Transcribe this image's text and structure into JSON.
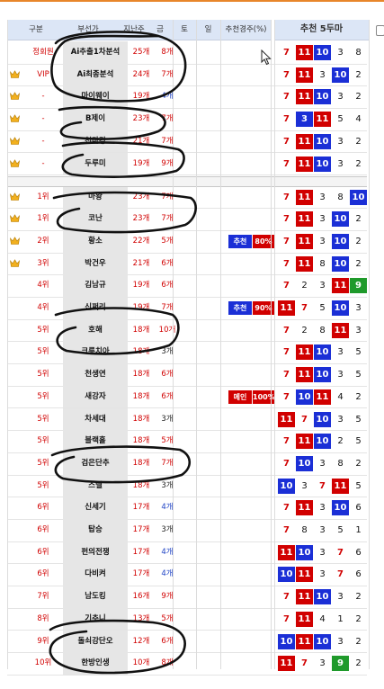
{
  "headers": {
    "rank": "구분",
    "name": "부선가",
    "rate": "지난주",
    "count": "금",
    "sat": "토",
    "sun": "일",
    "recommend_rate": "추천경주(%)",
    "picks": "추천 5두마"
  },
  "colors": {
    "red": "#d10000",
    "blue": "#1b2fd6",
    "green": "#1f9a2b",
    "header_bg": "#dce6f6"
  },
  "group1": [
    {
      "crown": false,
      "rank": "정회원",
      "name": "Ai추출1차분석",
      "rate": "25개",
      "count": "8개",
      "cc": "r",
      "nums": [
        "7",
        "11",
        "10",
        "3",
        "8"
      ],
      "styles": [
        "p",
        "r",
        "u",
        "k",
        "k"
      ]
    },
    {
      "crown": true,
      "rank": "VIP",
      "name": "Ai최종분석",
      "rate": "24개",
      "count": "7개",
      "cc": "r",
      "nums": [
        "7",
        "11",
        "3",
        "10",
        "2"
      ],
      "styles": [
        "p",
        "r",
        "k",
        "u",
        "k"
      ]
    },
    {
      "crown": true,
      "rank": "-",
      "name": "마이웨이",
      "rate": "19개",
      "count": "4개",
      "cc": "b",
      "nums": [
        "7",
        "11",
        "10",
        "3",
        "2"
      ],
      "styles": [
        "p",
        "r",
        "u",
        "k",
        "k"
      ]
    },
    {
      "crown": true,
      "rank": "-",
      "name": "B제이",
      "rate": "23개",
      "count": "7개",
      "cc": "r",
      "nums": [
        "7",
        "3",
        "11",
        "5",
        "4"
      ],
      "styles": [
        "p",
        "u",
        "r",
        "k",
        "k"
      ]
    },
    {
      "crown": true,
      "rank": "-",
      "name": "천마킹",
      "rate": "21개",
      "count": "7개",
      "cc": "r",
      "nums": [
        "7",
        "11",
        "10",
        "3",
        "2"
      ],
      "styles": [
        "p",
        "r",
        "u",
        "k",
        "k"
      ]
    },
    {
      "crown": true,
      "rank": "-",
      "name": "두루미",
      "rate": "19개",
      "count": "9개",
      "cc": "r",
      "nums": [
        "7",
        "11",
        "10",
        "3",
        "2"
      ],
      "styles": [
        "p",
        "r",
        "u",
        "k",
        "k"
      ]
    }
  ],
  "group2": [
    {
      "crown": true,
      "rank": "1위",
      "name": "마왕",
      "rate": "23개",
      "count": "7개",
      "cc": "r",
      "nums": [
        "7",
        "11",
        "3",
        "8",
        "10"
      ],
      "styles": [
        "p",
        "r",
        "k",
        "k",
        "u"
      ]
    },
    {
      "crown": true,
      "rank": "1위",
      "name": "코난",
      "rate": "23개",
      "count": "7개",
      "cc": "r",
      "nums": [
        "7",
        "11",
        "3",
        "10",
        "2"
      ],
      "styles": [
        "p",
        "r",
        "k",
        "u",
        "k"
      ]
    },
    {
      "crown": true,
      "rank": "2위",
      "name": "황소",
      "rate": "22개",
      "count": "5개",
      "cc": "r",
      "tag": "추천",
      "tagc": "u",
      "pct": "80%",
      "nums": [
        "7",
        "11",
        "3",
        "10",
        "2"
      ],
      "styles": [
        "p",
        "r",
        "k",
        "u",
        "k"
      ]
    },
    {
      "crown": true,
      "rank": "3위",
      "name": "박건우",
      "rate": "21개",
      "count": "6개",
      "cc": "r",
      "nums": [
        "7",
        "11",
        "8",
        "10",
        "2"
      ],
      "styles": [
        "p",
        "r",
        "k",
        "u",
        "k"
      ]
    },
    {
      "crown": false,
      "rank": "4위",
      "name": "김남규",
      "rate": "19개",
      "count": "6개",
      "cc": "r",
      "nums": [
        "7",
        "2",
        "3",
        "11",
        "9"
      ],
      "styles": [
        "p",
        "k",
        "k",
        "r",
        "g"
      ]
    },
    {
      "crown": false,
      "rank": "4위",
      "name": "신쩌리",
      "rate": "19개",
      "count": "7개",
      "cc": "r",
      "tag": "추천",
      "tagc": "u",
      "pct": "90%",
      "nums": [
        "11",
        "7",
        "5",
        "10",
        "3"
      ],
      "styles": [
        "r",
        "p",
        "k",
        "u",
        "k"
      ]
    },
    {
      "crown": false,
      "rank": "5위",
      "name": "호해",
      "rate": "18개",
      "count": "10개",
      "cc": "r",
      "nums": [
        "7",
        "2",
        "8",
        "11",
        "3"
      ],
      "styles": [
        "p",
        "k",
        "k",
        "r",
        "k"
      ]
    },
    {
      "crown": false,
      "rank": "5위",
      "name": "크릉치아",
      "rate": "18개",
      "count": "3개",
      "cc": "k",
      "nums": [
        "7",
        "11",
        "10",
        "3",
        "5"
      ],
      "styles": [
        "p",
        "r",
        "u",
        "k",
        "k"
      ]
    },
    {
      "crown": false,
      "rank": "5위",
      "name": "천생연",
      "rate": "18개",
      "count": "6개",
      "cc": "r",
      "nums": [
        "7",
        "11",
        "10",
        "3",
        "5"
      ],
      "styles": [
        "p",
        "r",
        "u",
        "k",
        "k"
      ]
    },
    {
      "crown": false,
      "rank": "5위",
      "name": "새강자",
      "rate": "18개",
      "count": "6개",
      "cc": "r",
      "tag": "메인",
      "tagc": "r",
      "pct": "100%",
      "nums": [
        "7",
        "10",
        "11",
        "4",
        "2"
      ],
      "styles": [
        "p",
        "u",
        "r",
        "k",
        "k"
      ]
    },
    {
      "crown": false,
      "rank": "5위",
      "name": "차세대",
      "rate": "18개",
      "count": "3개",
      "cc": "k",
      "nums": [
        "11",
        "7",
        "10",
        "3",
        "5"
      ],
      "styles": [
        "r",
        "p",
        "u",
        "k",
        "k"
      ]
    },
    {
      "crown": false,
      "rank": "5위",
      "name": "블랙홀",
      "rate": "18개",
      "count": "5개",
      "cc": "r",
      "nums": [
        "7",
        "11",
        "10",
        "2",
        "5"
      ],
      "styles": [
        "p",
        "r",
        "u",
        "k",
        "k"
      ]
    },
    {
      "crown": false,
      "rank": "5위",
      "name": "검은단추",
      "rate": "18개",
      "count": "7개",
      "cc": "r",
      "nums": [
        "7",
        "10",
        "3",
        "8",
        "2"
      ],
      "styles": [
        "p",
        "u",
        "k",
        "k",
        "k"
      ]
    },
    {
      "crown": false,
      "rank": "5위",
      "name": "스텔",
      "rate": "18개",
      "count": "3개",
      "cc": "k",
      "nums": [
        "10",
        "3",
        "7",
        "11",
        "5"
      ],
      "styles": [
        "u",
        "k",
        "p",
        "r",
        "k"
      ]
    },
    {
      "crown": false,
      "rank": "6위",
      "name": "신세기",
      "rate": "17개",
      "count": "4개",
      "cc": "b",
      "nums": [
        "7",
        "11",
        "3",
        "10",
        "6"
      ],
      "styles": [
        "p",
        "r",
        "k",
        "u",
        "k"
      ]
    },
    {
      "crown": false,
      "rank": "6위",
      "name": "탑승",
      "rate": "17개",
      "count": "3개",
      "cc": "k",
      "nums": [
        "7",
        "8",
        "3",
        "5",
        "1"
      ],
      "styles": [
        "p",
        "k",
        "k",
        "k",
        "k"
      ]
    },
    {
      "crown": false,
      "rank": "6위",
      "name": "펀의전쟁",
      "rate": "17개",
      "count": "4개",
      "cc": "b",
      "nums": [
        "11",
        "10",
        "3",
        "7",
        "6"
      ],
      "styles": [
        "r",
        "u",
        "k",
        "p",
        "k"
      ]
    },
    {
      "crown": false,
      "rank": "6위",
      "name": "다비켜",
      "rate": "17개",
      "count": "4개",
      "cc": "b",
      "nums": [
        "10",
        "11",
        "3",
        "7",
        "6"
      ],
      "styles": [
        "u",
        "r",
        "k",
        "p",
        "k"
      ]
    },
    {
      "crown": false,
      "rank": "7위",
      "name": "남도킹",
      "rate": "16개",
      "count": "9개",
      "cc": "r",
      "nums": [
        "7",
        "11",
        "10",
        "3",
        "2"
      ],
      "styles": [
        "p",
        "r",
        "u",
        "k",
        "k"
      ]
    },
    {
      "crown": false,
      "rank": "8위",
      "name": "기추니",
      "rate": "13개",
      "count": "5개",
      "cc": "r",
      "nums": [
        "7",
        "11",
        "4",
        "1",
        "2"
      ],
      "styles": [
        "p",
        "r",
        "k",
        "k",
        "k"
      ]
    },
    {
      "crown": false,
      "rank": "9위",
      "name": "돌쇠강단오",
      "rate": "12개",
      "count": "6개",
      "cc": "r",
      "nums": [
        "10",
        "11",
        "10",
        "3",
        "2"
      ],
      "styles": [
        "u",
        "r",
        "u",
        "k",
        "k"
      ]
    },
    {
      "crown": false,
      "rank": "10위",
      "name": "한방인생",
      "rate": "10개",
      "count": "8개",
      "cc": "r",
      "nums": [
        "11",
        "7",
        "3",
        "9",
        "2"
      ],
      "styles": [
        "r",
        "p",
        "k",
        "g",
        "k"
      ]
    }
  ]
}
